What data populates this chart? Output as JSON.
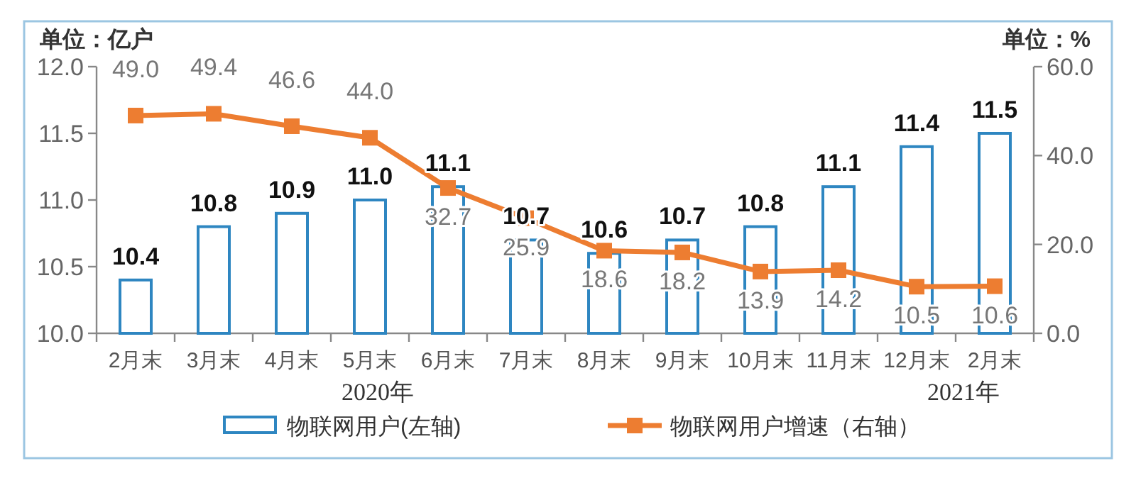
{
  "chart_data": {
    "type": "bar",
    "ylabel": "单位：亿户",
    "y2label": "单位：%",
    "categories": [
      "2月末",
      "3月末",
      "4月末",
      "5月末",
      "6月末",
      "7月末",
      "8月末",
      "9月末",
      "10月末",
      "11月末",
      "12月末",
      "2月末"
    ],
    "series": [
      {
        "name": "物联网用户(左轴)",
        "color": "#2e86c1",
        "values": [
          10.4,
          10.8,
          10.9,
          11.0,
          11.1,
          10.7,
          10.6,
          10.7,
          10.8,
          11.1,
          11.4,
          11.5
        ],
        "value_labels": [
          "10.4",
          "10.8",
          "10.9",
          "11.0",
          "11.1",
          "10.7",
          "10.6",
          "10.7",
          "10.8",
          "11.1",
          "11.4",
          "11.5"
        ]
      },
      {
        "name": "物联网用户增速（右轴）",
        "type": "line",
        "axis": "y2",
        "color": "#ed7d31",
        "values": [
          49.0,
          49.4,
          46.6,
          44.0,
          32.7,
          25.9,
          18.6,
          18.2,
          13.9,
          14.2,
          10.5,
          10.6
        ],
        "value_labels": [
          "49.0",
          "49.4",
          "46.6",
          "44.0",
          "32.7",
          "25.9",
          "18.6",
          "18.2",
          "13.9",
          "14.2",
          "10.5",
          "10.6"
        ]
      }
    ],
    "ylim": [
      10,
      12
    ],
    "yticks": [
      {
        "value": 10,
        "label": "10.0"
      },
      {
        "value": 10.5,
        "label": "10.5"
      },
      {
        "value": 11,
        "label": "11.0"
      },
      {
        "value": 11.5,
        "label": "11.5"
      },
      {
        "value": 12,
        "label": "12.0"
      }
    ],
    "y2lim": [
      0,
      60
    ],
    "y2ticks": [
      {
        "value": 0,
        "label": "0.0"
      },
      {
        "value": 20,
        "label": "20.0"
      },
      {
        "value": 40,
        "label": "40.0"
      },
      {
        "value": 60,
        "label": "60.0"
      }
    ],
    "marker": "square",
    "legend": "bottom",
    "annotations": [
      "2020年",
      "2021年"
    ]
  }
}
